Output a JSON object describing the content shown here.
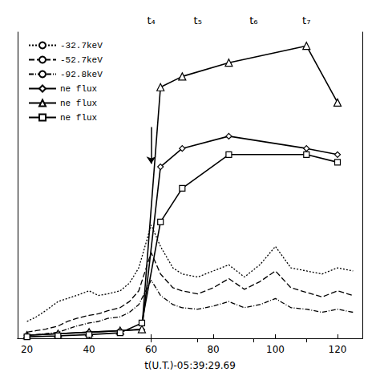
{
  "chart_data": {
    "type": "line",
    "xlabel": "t(U.T.)-05:39:29.69",
    "xlim": [
      17,
      128
    ],
    "xticks": [
      20,
      40,
      60,
      80,
      100,
      120
    ],
    "x2lim": [
      17,
      128
    ],
    "x2ticks": [
      {
        "value": 60,
        "label": "t₄"
      },
      {
        "value": 75,
        "label": "t₅"
      },
      {
        "value": 93,
        "label": "t₆"
      },
      {
        "value": 110,
        "label": "t₇"
      }
    ],
    "ylim": [
      0,
      1.0
    ],
    "tick_labels": "x",
    "grid": false,
    "legend": "upper left",
    "color": "#000000",
    "series": [
      {
        "name": "-32.7keV",
        "line_style": "dotted",
        "x": [
          20,
          23,
          26,
          30,
          33,
          36,
          40,
          43,
          46,
          50,
          53,
          56,
          60,
          63,
          67,
          70,
          75,
          80,
          85,
          90,
          95,
          100,
          105,
          110,
          115,
          120,
          125
        ],
        "values": [
          0.055,
          0.07,
          0.09,
          0.12,
          0.13,
          0.14,
          0.155,
          0.14,
          0.145,
          0.155,
          0.18,
          0.23,
          0.37,
          0.3,
          0.23,
          0.21,
          0.2,
          0.22,
          0.24,
          0.2,
          0.24,
          0.3,
          0.23,
          0.22,
          0.21,
          0.23,
          0.22
        ]
      },
      {
        "name": "-52.7keV",
        "line_style": "dashed",
        "x": [
          20,
          23,
          26,
          30,
          33,
          36,
          40,
          43,
          46,
          50,
          53,
          56,
          60,
          63,
          67,
          70,
          75,
          80,
          85,
          90,
          95,
          100,
          105,
          110,
          115,
          120,
          125
        ],
        "values": [
          0.02,
          0.025,
          0.03,
          0.04,
          0.055,
          0.065,
          0.075,
          0.08,
          0.09,
          0.1,
          0.12,
          0.155,
          0.28,
          0.21,
          0.165,
          0.155,
          0.145,
          0.165,
          0.195,
          0.16,
          0.185,
          0.22,
          0.165,
          0.15,
          0.135,
          0.155,
          0.14
        ]
      },
      {
        "name": "-92.8keV",
        "line_style": "dashdot",
        "x": [
          20,
          23,
          26,
          30,
          33,
          36,
          40,
          43,
          46,
          50,
          53,
          56,
          60,
          63,
          67,
          70,
          75,
          80,
          85,
          90,
          95,
          100,
          105,
          110,
          115,
          120,
          125
        ],
        "values": [
          0.01,
          0.012,
          0.015,
          0.02,
          0.03,
          0.04,
          0.05,
          0.055,
          0.065,
          0.07,
          0.085,
          0.11,
          0.19,
          0.14,
          0.11,
          0.1,
          0.095,
          0.105,
          0.12,
          0.1,
          0.11,
          0.13,
          0.1,
          0.095,
          0.085,
          0.095,
          0.085
        ]
      },
      {
        "name": "ne flux",
        "line_style": "solid",
        "marker": "diamond",
        "x": [
          20,
          30,
          40,
          50,
          57,
          63,
          70,
          85,
          110,
          120
        ],
        "values": [
          0.01,
          0.015,
          0.02,
          0.025,
          0.028,
          0.56,
          0.62,
          0.66,
          0.62,
          0.6
        ]
      },
      {
        "name": "ne flux",
        "line_style": "solid",
        "marker": "triangle",
        "x": [
          20,
          30,
          40,
          50,
          57,
          63,
          70,
          85,
          110,
          120
        ],
        "values": [
          0.01,
          0.015,
          0.02,
          0.025,
          0.03,
          0.82,
          0.855,
          0.9,
          0.955,
          0.77
        ]
      },
      {
        "name": "ne flux",
        "line_style": "solid",
        "marker": "square",
        "x": [
          20,
          30,
          40,
          50,
          57,
          63,
          70,
          85,
          110,
          120
        ],
        "values": [
          0.005,
          0.008,
          0.012,
          0.018,
          0.05,
          0.38,
          0.49,
          0.6,
          0.6,
          0.575
        ]
      }
    ],
    "arrow": {
      "x": 60,
      "y_start": 0.69,
      "y_end": 0.57
    }
  }
}
